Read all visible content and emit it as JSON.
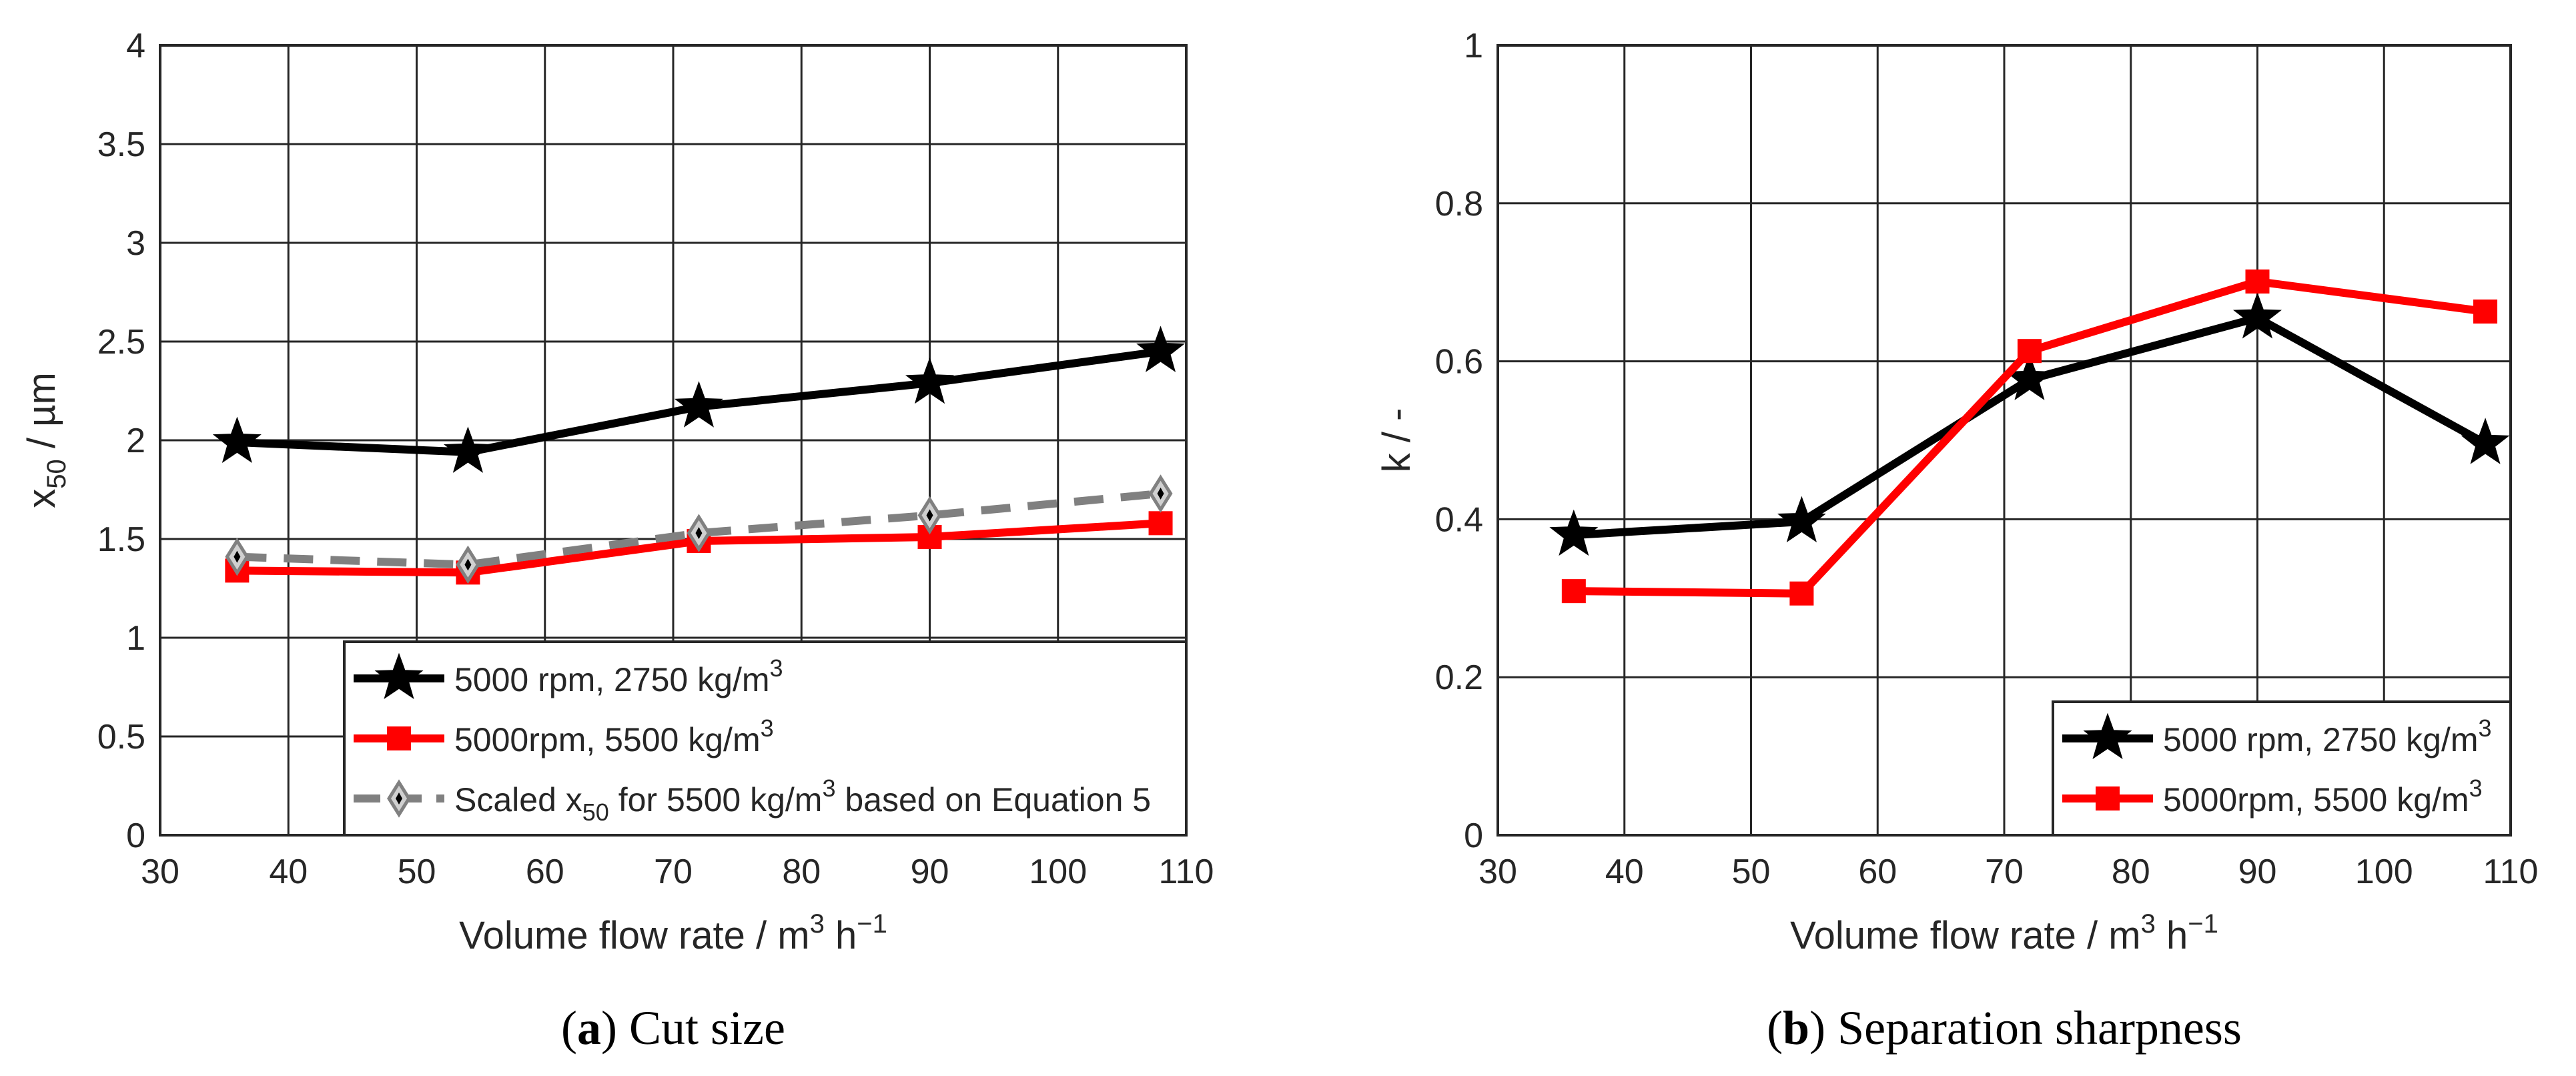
{
  "charts": [
    {
      "type": "line",
      "id": "a",
      "caption_letter": "a",
      "caption_text": "Cut size",
      "xlabel": "Volume flow rate / m",
      "xlabel_sup1": "3",
      "xlabel_mid": " h",
      "xlabel_sup2": "−1",
      "ylabel_main": "x",
      "ylabel_sub": "50",
      "ylabel_rest": " / µm",
      "xlim": [
        30,
        110
      ],
      "ylim": [
        0,
        4
      ],
      "xticks": [
        30,
        40,
        50,
        60,
        70,
        80,
        90,
        100,
        110
      ],
      "yticks": [
        0,
        0.5,
        1,
        1.5,
        2,
        2.5,
        3,
        3.5,
        4
      ],
      "ytick_labels": [
        "0",
        "0.5",
        "1",
        "1.5",
        "2",
        "2.5",
        "3",
        "3.5",
        "4"
      ],
      "grid": true,
      "legend_position": "bottom-right",
      "series": [
        {
          "name": "5000 rpm, 2750 kg/m",
          "name_sup": "3",
          "color": "#000000",
          "marker": "star",
          "dashed": false,
          "x": [
            36,
            54,
            72,
            90,
            108
          ],
          "y": [
            1.99,
            1.94,
            2.17,
            2.29,
            2.45
          ]
        },
        {
          "name": "5000rpm, 5500 kg/m",
          "name_sup": "3",
          "color": "#ff0000",
          "marker": "square",
          "dashed": false,
          "x": [
            36,
            54,
            72,
            90,
            108
          ],
          "y": [
            1.34,
            1.33,
            1.49,
            1.51,
            1.58
          ]
        },
        {
          "name_pre": "Scaled x",
          "name_sub": "50",
          "name_mid": " for 5500 kg/m",
          "name_sup": "3",
          "name_post": " based on Equation 5",
          "color": "#808080",
          "marker": "diamond",
          "dashed": true,
          "x": [
            36,
            54,
            72,
            90,
            108
          ],
          "y": [
            1.41,
            1.37,
            1.53,
            1.62,
            1.73
          ]
        }
      ]
    },
    {
      "type": "line",
      "id": "b",
      "caption_letter": "b",
      "caption_text": "Separation sharpness",
      "xlabel": "Volume flow rate / m",
      "xlabel_sup1": "3",
      "xlabel_mid": " h",
      "xlabel_sup2": "−1",
      "ylabel_main": "k / -",
      "xlim": [
        30,
        110
      ],
      "ylim": [
        0,
        1
      ],
      "xticks": [
        30,
        40,
        50,
        60,
        70,
        80,
        90,
        100,
        110
      ],
      "yticks": [
        0,
        0.2,
        0.4,
        0.6,
        0.8,
        1
      ],
      "ytick_labels": [
        "0",
        "0.2",
        "0.4",
        "0.6",
        "0.8",
        "1"
      ],
      "grid": true,
      "legend_position": "bottom-right",
      "series": [
        {
          "name": "5000 rpm, 2750 kg/m",
          "name_sup": "3",
          "color": "#000000",
          "marker": "star",
          "dashed": false,
          "x": [
            36,
            54,
            72,
            90,
            108
          ],
          "y": [
            0.38,
            0.397,
            0.577,
            0.655,
            0.496
          ]
        },
        {
          "name": "5000rpm, 5500 kg/m",
          "name_sup": "3",
          "color": "#ff0000",
          "marker": "square",
          "dashed": false,
          "x": [
            36,
            54,
            72,
            90,
            108
          ],
          "y": [
            0.309,
            0.306,
            0.613,
            0.701,
            0.663
          ]
        }
      ]
    }
  ],
  "chart_data": [
    {
      "type": "line",
      "title": "(a) Cut size",
      "xlabel": "Volume flow rate / m3 h−1",
      "ylabel": "x50 / µm",
      "xlim": [
        30,
        110
      ],
      "ylim": [
        0,
        4
      ],
      "x": [
        36,
        54,
        72,
        90,
        108
      ],
      "series": [
        {
          "name": "5000 rpm, 2750 kg/m3",
          "values": [
            1.99,
            1.94,
            2.17,
            2.29,
            2.45
          ]
        },
        {
          "name": "5000rpm, 5500 kg/m3",
          "values": [
            1.34,
            1.33,
            1.49,
            1.51,
            1.58
          ]
        },
        {
          "name": "Scaled x50 for 5500 kg/m3 based on Equation 5",
          "values": [
            1.41,
            1.37,
            1.53,
            1.62,
            1.73
          ]
        }
      ]
    },
    {
      "type": "line",
      "title": "(b) Separation sharpness",
      "xlabel": "Volume flow rate / m3 h−1",
      "ylabel": "k / -",
      "xlim": [
        30,
        110
      ],
      "ylim": [
        0,
        1
      ],
      "x": [
        36,
        54,
        72,
        90,
        108
      ],
      "series": [
        {
          "name": "5000 rpm, 2750 kg/m3",
          "values": [
            0.38,
            0.397,
            0.577,
            0.655,
            0.496
          ]
        },
        {
          "name": "5000rpm, 5500 kg/m3",
          "values": [
            0.309,
            0.306,
            0.613,
            0.701,
            0.663
          ]
        }
      ]
    }
  ]
}
